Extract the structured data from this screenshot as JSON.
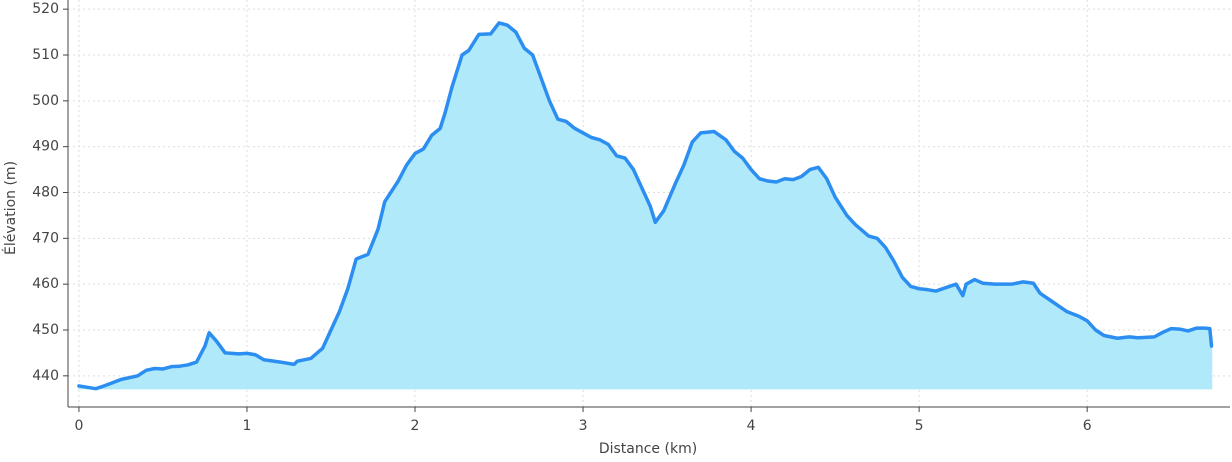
{
  "chart_data": {
    "type": "area-line",
    "x_label": "Distance (km)",
    "y_label": "Élévation (m)",
    "line_color": "#2b8ef0",
    "fill_color": "#b0eafa",
    "grid": true,
    "xlim": [
      -0.065,
      6.85
    ],
    "ylim": [
      433.2,
      522
    ],
    "xticks": [
      0,
      1,
      2,
      3,
      4,
      5,
      6
    ],
    "yticks": [
      440,
      450,
      460,
      470,
      480,
      490,
      500,
      510,
      520
    ],
    "x": [
      0.0,
      0.05,
      0.1,
      0.15,
      0.2,
      0.25,
      0.3,
      0.35,
      0.4,
      0.45,
      0.5,
      0.55,
      0.6,
      0.65,
      0.7,
      0.75,
      0.775,
      0.82,
      0.87,
      0.95,
      1.0,
      1.05,
      1.1,
      1.2,
      1.28,
      1.3,
      1.38,
      1.45,
      1.5,
      1.55,
      1.6,
      1.65,
      1.72,
      1.78,
      1.82,
      1.9,
      1.95,
      2.0,
      2.05,
      2.1,
      2.15,
      2.18,
      2.22,
      2.28,
      2.32,
      2.38,
      2.45,
      2.5,
      2.55,
      2.6,
      2.65,
      2.7,
      2.75,
      2.8,
      2.85,
      2.9,
      2.95,
      3.0,
      3.05,
      3.1,
      3.15,
      3.2,
      3.25,
      3.3,
      3.35,
      3.4,
      3.43,
      3.48,
      3.55,
      3.6,
      3.65,
      3.7,
      3.78,
      3.85,
      3.9,
      3.95,
      4.0,
      4.05,
      4.1,
      4.15,
      4.2,
      4.25,
      4.3,
      4.35,
      4.4,
      4.45,
      4.5,
      4.57,
      4.62,
      4.7,
      4.75,
      4.8,
      4.85,
      4.9,
      4.95,
      5.0,
      5.05,
      5.1,
      5.18,
      5.22,
      5.26,
      5.28,
      5.33,
      5.38,
      5.45,
      5.55,
      5.62,
      5.68,
      5.72,
      5.8,
      5.88,
      5.95,
      6.0,
      6.05,
      6.1,
      6.18,
      6.25,
      6.3,
      6.4,
      6.45,
      6.5,
      6.55,
      6.6,
      6.65,
      6.7,
      6.73,
      6.74
    ],
    "values": [
      437.8,
      437.5,
      437.2,
      437.8,
      438.5,
      439.2,
      439.6,
      440.0,
      441.2,
      441.6,
      441.5,
      442.0,
      442.1,
      442.4,
      443.0,
      446.5,
      449.4,
      447.5,
      445.0,
      444.8,
      444.9,
      444.6,
      443.5,
      443.0,
      442.5,
      443.2,
      443.8,
      446.0,
      450.0,
      454.0,
      459.0,
      465.5,
      466.5,
      472.0,
      478.0,
      482.5,
      486.0,
      488.5,
      489.5,
      492.5,
      494.0,
      497.5,
      503.0,
      510.0,
      511.0,
      514.5,
      514.6,
      517.0,
      516.5,
      515.0,
      511.5,
      510.0,
      505.0,
      500.0,
      496.0,
      495.5,
      494.0,
      493.0,
      492.0,
      491.5,
      490.5,
      488.0,
      487.5,
      485.0,
      481.0,
      477.0,
      473.5,
      476.0,
      482.0,
      486.0,
      491.0,
      493.0,
      493.3,
      491.5,
      489.0,
      487.5,
      485.0,
      483.0,
      482.5,
      482.3,
      483.0,
      482.8,
      483.5,
      485.0,
      485.5,
      483.0,
      479.0,
      475.0,
      473.0,
      470.5,
      470.0,
      468.0,
      465.0,
      461.5,
      459.5,
      459.0,
      458.8,
      458.5,
      459.5,
      460.0,
      457.5,
      460.0,
      461.0,
      460.2,
      460.0,
      460.0,
      460.5,
      460.2,
      458.0,
      456.0,
      454.0,
      453.0,
      452.0,
      450.0,
      448.8,
      448.2,
      448.5,
      448.3,
      448.5,
      449.5,
      450.3,
      450.2,
      449.8,
      450.4,
      450.4,
      450.3,
      446.5
    ]
  }
}
